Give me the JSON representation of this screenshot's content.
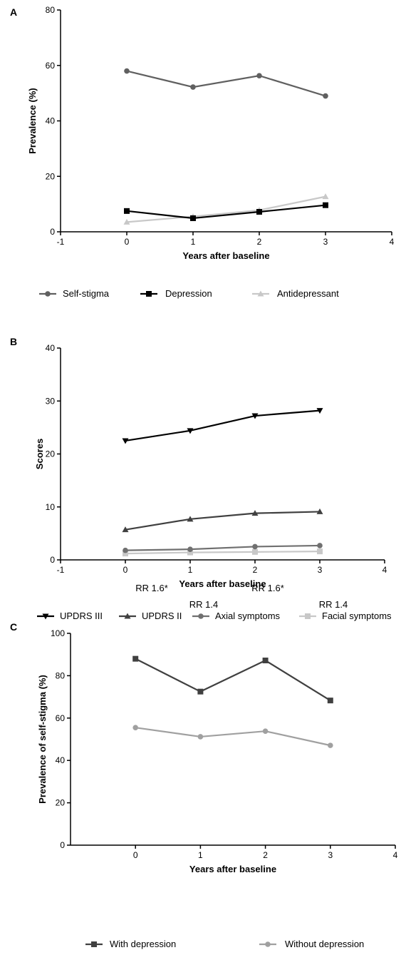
{
  "chart_data": [
    {
      "panel_label": "A",
      "type": "line",
      "xlabel": "Years after baseline",
      "ylabel": "Prevalence (%)",
      "xlim": [
        -1,
        4
      ],
      "ylim": [
        0,
        80
      ],
      "xticks": [
        -1,
        0,
        1,
        2,
        3,
        4
      ],
      "yticks": [
        0,
        20,
        40,
        60,
        80
      ],
      "grid": false,
      "legend_position": "bottom",
      "x": [
        0,
        1,
        2,
        3
      ],
      "series": [
        {
          "name": "Self-stigma",
          "values": [
            58,
            52.2,
            56.3,
            49
          ],
          "color": "#606060",
          "marker": "circle"
        },
        {
          "name": "Depression",
          "values": [
            7.5,
            4.9,
            7.2,
            9.6
          ],
          "color": "#000000",
          "marker": "square"
        },
        {
          "name": "Antidepressant",
          "values": [
            3.5,
            5.5,
            7.8,
            12.7
          ],
          "color": "#c8c8c8",
          "marker": "triangle"
        }
      ]
    },
    {
      "panel_label": "B",
      "type": "line",
      "xlabel": "Years after baseline",
      "ylabel": "Scores",
      "xlim": [
        -1,
        4
      ],
      "ylim": [
        0,
        40
      ],
      "xticks": [
        -1,
        0,
        1,
        2,
        3,
        4
      ],
      "yticks": [
        0,
        10,
        20,
        30,
        40
      ],
      "grid": false,
      "legend_position": "bottom",
      "x": [
        0,
        1,
        2,
        3
      ],
      "series": [
        {
          "name": "UPDRS III",
          "values": [
            22.5,
            24.4,
            27.2,
            28.2
          ],
          "color": "#000000",
          "marker": "triangle-down"
        },
        {
          "name": "UPDRS II",
          "values": [
            5.7,
            7.7,
            8.8,
            9.1
          ],
          "color": "#404040",
          "marker": "triangle"
        },
        {
          "name": "Axial symptoms",
          "values": [
            1.8,
            2.0,
            2.5,
            2.7
          ],
          "color": "#707070",
          "marker": "circle"
        },
        {
          "name": "Facial symptoms",
          "values": [
            1.2,
            1.4,
            1.5,
            1.6
          ],
          "color": "#c8c8c8",
          "marker": "square"
        }
      ]
    },
    {
      "panel_label": "C",
      "type": "line",
      "xlabel": "Years after baseline",
      "ylabel": "Prevalence of self-stigma (%)",
      "xlim": [
        -1,
        4
      ],
      "ylim": [
        0,
        100
      ],
      "xticks": [
        0,
        1,
        2,
        3,
        4
      ],
      "yticks": [
        0,
        20,
        40,
        60,
        80,
        100
      ],
      "grid": false,
      "legend_position": "bottom",
      "x": [
        0,
        1,
        2,
        3
      ],
      "series": [
        {
          "name": "With depression",
          "values": [
            88,
            72.5,
            87.2,
            68.3
          ],
          "color": "#404040",
          "marker": "square"
        },
        {
          "name": "Without depression",
          "values": [
            55.5,
            51.2,
            53.8,
            47.1
          ],
          "color": "#a0a0a0",
          "marker": "circle"
        }
      ],
      "annotations": [
        {
          "text": "RR 1.6*",
          "x": 0,
          "y": 80
        },
        {
          "text": "RR 1.4",
          "x": 1,
          "y": 65
        },
        {
          "text": "RR 1.6*",
          "x": 2,
          "y": 80
        },
        {
          "text": "RR 1.4",
          "x": 3,
          "y": 65
        }
      ]
    }
  ]
}
